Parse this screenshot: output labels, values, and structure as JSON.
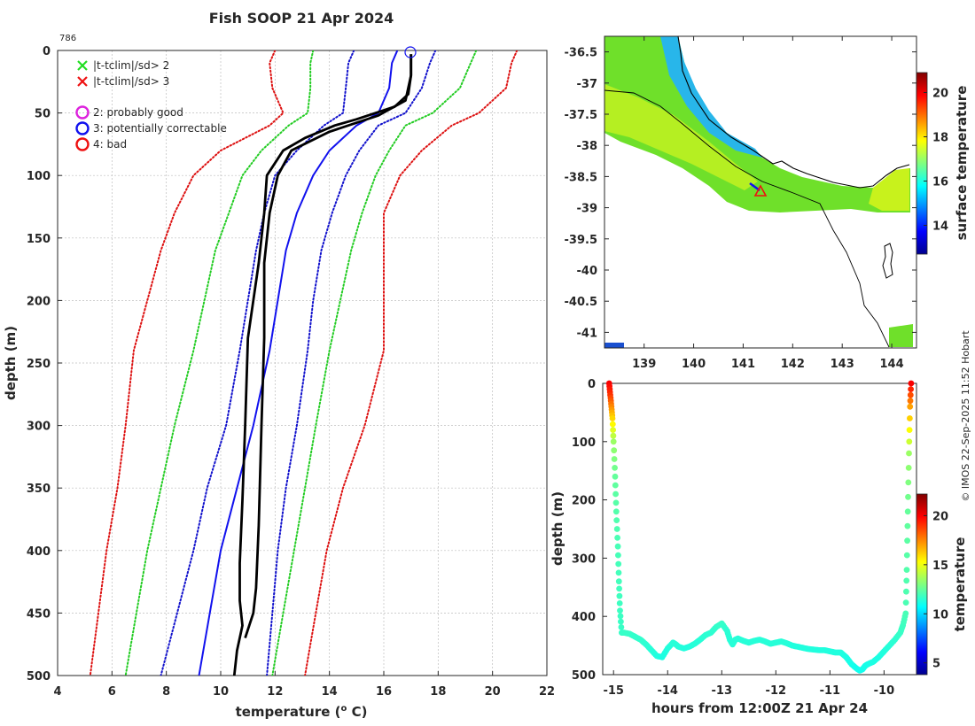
{
  "chart_data": [
    {
      "type": "line",
      "id": "profile",
      "title": "Fish SOOP 21 Apr 2024",
      "id_label": "786",
      "xlabel": "temperature (° C)",
      "xlabel_main": "temperature (",
      "xlabel_sup": "o",
      "xlabel_end": " C)",
      "ylabel": "depth (m)",
      "xlim": [
        4,
        22
      ],
      "ylim": [
        0,
        500
      ],
      "xticks": [
        4,
        6,
        8,
        10,
        12,
        14,
        16,
        18,
        20,
        22
      ],
      "yticks": [
        0,
        50,
        100,
        150,
        200,
        250,
        300,
        350,
        400,
        450,
        500
      ],
      "legend": [
        {
          "label": "|t-tclim|/sd> 2",
          "marker": "x",
          "color": "#22dd22"
        },
        {
          "label": "|t-tclim|/sd> 3",
          "marker": "x",
          "color": "#ee1111"
        },
        {
          "label": "2: probably good",
          "marker": "o",
          "color": "#dd22dd"
        },
        {
          "label": "3: potentially correctable",
          "marker": "o",
          "color": "#1111ee"
        },
        {
          "label": "4: bad",
          "marker": "o",
          "color": "#ee1111"
        }
      ],
      "series": [
        {
          "name": "clim -3sd",
          "style": "dotted",
          "color": "#dd1111",
          "x": [
            12.0,
            11.8,
            11.9,
            12.3,
            11.8,
            10.0,
            9.0,
            8.3,
            7.8,
            7.3,
            6.8,
            6.5,
            6.2,
            5.8,
            5.5,
            5.2
          ],
          "y": [
            0,
            10,
            30,
            50,
            60,
            80,
            100,
            130,
            160,
            200,
            240,
            300,
            350,
            400,
            450,
            500
          ]
        },
        {
          "name": "clim -2sd",
          "style": "dotted",
          "color": "#22cc22",
          "x": [
            13.4,
            13.3,
            13.3,
            13.2,
            12.5,
            11.5,
            10.8,
            10.3,
            9.8,
            9.4,
            9.0,
            8.3,
            7.8,
            7.3,
            6.9,
            6.5
          ],
          "y": [
            0,
            10,
            30,
            50,
            60,
            80,
            100,
            130,
            160,
            200,
            240,
            300,
            350,
            400,
            450,
            500
          ]
        },
        {
          "name": "clim -1sd",
          "style": "dotted",
          "color": "#1111cc",
          "x": [
            14.9,
            14.7,
            14.6,
            14.5,
            13.8,
            12.8,
            12.0,
            11.6,
            11.3,
            11.0,
            10.7,
            10.2,
            9.5,
            9.0,
            8.4,
            7.8
          ],
          "y": [
            0,
            10,
            30,
            50,
            60,
            80,
            100,
            130,
            160,
            200,
            240,
            300,
            350,
            400,
            450,
            500
          ]
        },
        {
          "name": "clim mean",
          "style": "solid",
          "color": "#1111ee",
          "x": [
            16.5,
            16.3,
            16.2,
            15.8,
            15.0,
            14.0,
            13.4,
            12.8,
            12.4,
            12.1,
            11.8,
            11.2,
            10.6,
            10.0,
            9.6,
            9.2
          ],
          "y": [
            0,
            10,
            30,
            50,
            60,
            80,
            100,
            130,
            160,
            200,
            240,
            300,
            350,
            400,
            450,
            500
          ]
        },
        {
          "name": "clim +1sd",
          "style": "dotted",
          "color": "#1111cc",
          "x": [
            17.9,
            17.7,
            17.4,
            16.8,
            15.8,
            15.1,
            14.6,
            14.1,
            13.7,
            13.4,
            13.2,
            12.8,
            12.4,
            12.1,
            11.9,
            11.7
          ],
          "y": [
            0,
            10,
            30,
            50,
            60,
            80,
            100,
            130,
            160,
            200,
            240,
            300,
            350,
            400,
            450,
            500
          ]
        },
        {
          "name": "clim +2sd",
          "style": "dotted",
          "color": "#22cc22",
          "x": [
            19.4,
            19.2,
            18.8,
            17.8,
            16.8,
            16.2,
            15.7,
            15.2,
            14.8,
            14.4,
            14.0,
            13.5,
            13.1,
            12.7,
            12.3,
            11.9
          ],
          "y": [
            0,
            10,
            30,
            50,
            60,
            80,
            100,
            130,
            160,
            200,
            240,
            300,
            350,
            400,
            450,
            500
          ]
        },
        {
          "name": "clim +3sd",
          "style": "dotted",
          "color": "#dd1111",
          "x": [
            20.9,
            20.7,
            20.5,
            19.5,
            18.5,
            17.4,
            16.6,
            16.0,
            16.0,
            16.0,
            16.0,
            15.3,
            14.5,
            13.9,
            13.5,
            13.1
          ],
          "y": [
            0,
            10,
            30,
            50,
            60,
            80,
            100,
            130,
            160,
            200,
            240,
            300,
            350,
            400,
            450,
            500
          ]
        },
        {
          "name": "profile descent",
          "style": "solid-thick",
          "color": "#000000",
          "x": [
            17.0,
            17.0,
            16.9,
            16.4,
            15.0,
            14.2,
            13.1,
            12.3,
            11.7,
            11.6,
            11.4,
            11.0,
            10.9,
            10.8,
            10.7,
            10.7,
            10.8,
            10.6,
            10.5
          ],
          "y": [
            3,
            20,
            35,
            45,
            55,
            60,
            70,
            80,
            100,
            130,
            170,
            230,
            300,
            360,
            410,
            440,
            460,
            480,
            500
          ]
        },
        {
          "name": "profile ascent",
          "style": "solid-thick",
          "color": "#000000",
          "x": [
            10.9,
            11.2,
            11.3,
            11.4,
            11.5,
            11.6,
            11.6,
            11.8,
            12.1,
            12.6,
            14.0,
            15.8,
            16.8,
            17.0,
            17.0
          ],
          "y": [
            470,
            450,
            430,
            380,
            300,
            230,
            170,
            130,
            100,
            80,
            65,
            52,
            40,
            20,
            3
          ]
        }
      ]
    },
    {
      "type": "heatmap",
      "id": "map",
      "xticks": [
        139,
        140,
        141,
        142,
        143,
        144
      ],
      "yticks": [
        -36.5,
        -37,
        -37.5,
        -38,
        -38.5,
        -39,
        -39.5,
        -40,
        -40.5,
        -41
      ],
      "xlim": [
        138.2,
        144.5
      ],
      "ylim": [
        -41.25,
        -36.25
      ],
      "colorbar_label": "surface temperature",
      "colorbar_ticks": [
        14,
        16,
        18,
        20
      ],
      "colorbar_range": [
        12.7,
        20.9
      ],
      "marker": {
        "lon": 141.4,
        "lat": -38.75,
        "symbol": "triangle",
        "color": "#ee1111"
      }
    },
    {
      "type": "scatter",
      "id": "track",
      "xlabel": "hours from 12:00Z 21 Apr 24",
      "ylabel": "depth (m)",
      "xlim": [
        -15.2,
        -9.4
      ],
      "ylim": [
        0,
        500
      ],
      "xticks": [
        -15,
        -14,
        -13,
        -12,
        -11,
        -10
      ],
      "yticks": [
        0,
        100,
        200,
        300,
        400,
        500
      ],
      "colorbar_label": "temperature",
      "colorbar_ticks": [
        5,
        10,
        15,
        20
      ],
      "colorbar_range": [
        3.8,
        22.2
      ],
      "x": [
        -15.08,
        -15.06,
        -15.04,
        -15.02,
        -15.0,
        -14.97,
        -14.95,
        -14.92,
        -14.9,
        -14.88,
        -14.85,
        -14.8,
        -14.7,
        -14.6,
        -14.5,
        -14.4,
        -14.3,
        -14.2,
        -14.1,
        -14.0,
        -13.9,
        -13.85,
        -13.8,
        -13.7,
        -13.6,
        -13.5,
        -13.4,
        -13.3,
        -13.2,
        -13.1,
        -13.0,
        -12.9,
        -12.85,
        -12.8,
        -12.75,
        -12.7,
        -12.6,
        -12.5,
        -12.4,
        -12.3,
        -12.2,
        -12.1,
        -12.0,
        -11.9,
        -11.8,
        -11.7,
        -11.6,
        -11.5,
        -11.4,
        -11.3,
        -11.2,
        -11.1,
        -11.0,
        -10.9,
        -10.8,
        -10.7,
        -10.6,
        -10.5,
        -10.45,
        -10.4,
        -10.35,
        -10.3,
        -10.2,
        -10.1,
        -10.0,
        -9.9,
        -9.8,
        -9.7,
        -9.65,
        -9.6,
        -9.58,
        -9.56,
        -9.54,
        -9.52,
        -9.5
      ],
      "y": [
        0,
        20,
        40,
        60,
        100,
        160,
        220,
        280,
        340,
        390,
        428,
        428,
        430,
        435,
        440,
        448,
        458,
        468,
        470,
        455,
        445,
        448,
        452,
        455,
        452,
        447,
        440,
        432,
        428,
        418,
        412,
        425,
        440,
        448,
        440,
        438,
        442,
        445,
        442,
        440,
        443,
        447,
        445,
        443,
        446,
        450,
        452,
        454,
        456,
        457,
        458,
        458,
        460,
        462,
        462,
        470,
        482,
        490,
        493,
        491,
        485,
        482,
        478,
        470,
        460,
        450,
        440,
        428,
        415,
        395,
        320,
        220,
        120,
        40,
        0
      ],
      "c": [
        20,
        19,
        17.5,
        16,
        13.5,
        12.5,
        12.2,
        12.0,
        11.9,
        11.8,
        11.7,
        11.7,
        11.7,
        11.6,
        11.6,
        11.5,
        11.4,
        11.3,
        11.2,
        11.3,
        11.4,
        11.4,
        11.4,
        11.3,
        11.3,
        11.4,
        11.4,
        11.5,
        11.5,
        11.6,
        11.7,
        11.5,
        11.4,
        11.4,
        11.4,
        11.4,
        11.4,
        11.4,
        11.4,
        11.4,
        11.4,
        11.4,
        11.4,
        11.4,
        11.4,
        11.3,
        11.3,
        11.3,
        11.3,
        11.3,
        11.3,
        11.3,
        11.3,
        11.3,
        11.3,
        11.2,
        11.1,
        11.0,
        11.0,
        11.0,
        11.1,
        11.1,
        11.2,
        11.2,
        11.3,
        11.4,
        11.5,
        11.7,
        11.8,
        12.0,
        12.2,
        12.5,
        13.5,
        17,
        20
      ]
    }
  ],
  "page": {
    "credit": "©  IMOS 22-Sep-2025 11:52 Hobart"
  }
}
